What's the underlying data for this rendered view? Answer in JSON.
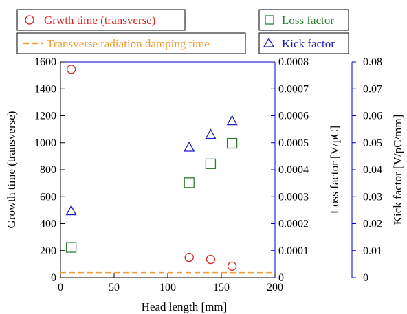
{
  "chart_data": {
    "type": "scatter",
    "title": "",
    "xlabel": "Head length [mm]",
    "xlim": [
      0,
      200
    ],
    "xticks": [
      0,
      50,
      100,
      150,
      200
    ],
    "grid": false,
    "axes": {
      "y_left": {
        "label": "Growth time (transverse)",
        "ylim": [
          0,
          1600
        ],
        "ticks": [
          0,
          200,
          400,
          600,
          800,
          1000,
          1200,
          1400,
          1600
        ],
        "color": "#000000"
      },
      "y_right_inner": {
        "label": "Loss factor [V/pC]",
        "ylim": [
          0,
          0.0008
        ],
        "ticks": [
          0,
          0.0001,
          0.0002,
          0.0003,
          0.0004,
          0.0005,
          0.0006,
          0.0007,
          0.0008
        ],
        "tick_labels": [
          "0",
          "0.0001",
          "0.0002",
          "0.0003",
          "0.0004",
          "0.0005",
          "0.0006",
          "0.0007",
          "0.0008"
        ],
        "color": "#0000cc"
      },
      "y_right_outer": {
        "label": "Kick factor [V/pC/mm]",
        "ylim": [
          0,
          0.08
        ],
        "ticks": [
          0,
          0.01,
          0.02,
          0.03,
          0.04,
          0.05,
          0.06,
          0.07,
          0.08
        ],
        "tick_labels": [
          "0",
          "0.01",
          "0.02",
          "0.03",
          "0.04",
          "0.05",
          "0.06",
          "0.07",
          "0.08"
        ],
        "color": "#0000cc"
      }
    },
    "series": [
      {
        "name": "Grwth time (transverse)",
        "axis": "y_left",
        "marker": "circle",
        "color": "#dd2222",
        "x": [
          10,
          120,
          140,
          160
        ],
        "y": [
          1545,
          150,
          135,
          85
        ]
      },
      {
        "name": "Transverse radiation damping time",
        "axis": "y_left",
        "marker": "dashed-line",
        "color": "#f39c33",
        "x": [
          0,
          200
        ],
        "y": [
          35,
          35
        ]
      },
      {
        "name": "Loss factor",
        "axis": "y_right_inner",
        "marker": "square",
        "color": "#2e7d32",
        "x": [
          10,
          120,
          140,
          160
        ],
        "y": [
          0.000112,
          0.000352,
          0.000422,
          0.000498
        ]
      },
      {
        "name": "Kick factor",
        "axis": "y_right_outer",
        "marker": "triangle",
        "color": "#1f1fbf",
        "x": [
          10,
          120,
          140,
          160
        ],
        "y": [
          0.0248,
          0.0484,
          0.0531,
          0.0582
        ]
      }
    ],
    "legend_placement": "top"
  }
}
